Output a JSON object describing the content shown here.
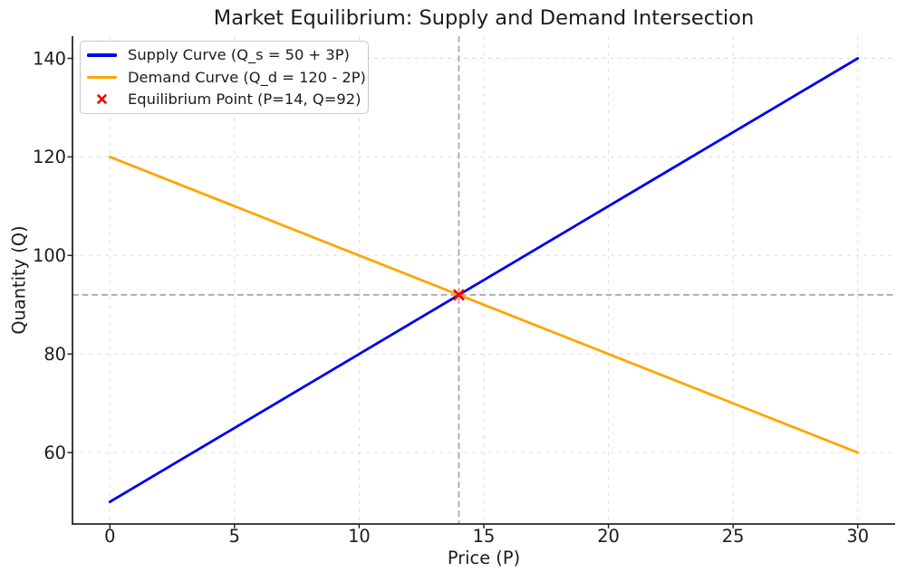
{
  "chart_data": {
    "type": "line",
    "title": "Market Equilibrium: Supply and Demand Intersection",
    "xlabel": "Price (P)",
    "ylabel": "Quantity (Q)",
    "xlim": [
      -1.5,
      31.5
    ],
    "ylim": [
      45.5,
      144.5
    ],
    "x_ticks": [
      0,
      5,
      10,
      15,
      20,
      25,
      30
    ],
    "y_ticks": [
      60,
      80,
      100,
      120,
      140
    ],
    "grid": true,
    "grid_style": "dashed",
    "legend_position": "upper left",
    "series": [
      {
        "name": "Supply Curve (Q_s = 50 + 3P)",
        "color": "#0000f0",
        "x": [
          0,
          30
        ],
        "y": [
          50,
          140
        ]
      },
      {
        "name": "Demand Curve (Q_d = 120 - 2P)",
        "color": "#ffa500",
        "x": [
          0,
          30
        ],
        "y": [
          120,
          60
        ]
      }
    ],
    "equilibrium": {
      "label": "Equilibrium Point (P=14, Q=92)",
      "P": 14,
      "Q": 92
    },
    "style": {
      "supply_color": "#0000f0",
      "demand_color": "#ffa500",
      "marker_color": "#f40000",
      "guide_color": "#a9a9a9",
      "grid_color": "#dedede",
      "spine_color": "#262626",
      "text_color": "#1c1c1c"
    }
  }
}
